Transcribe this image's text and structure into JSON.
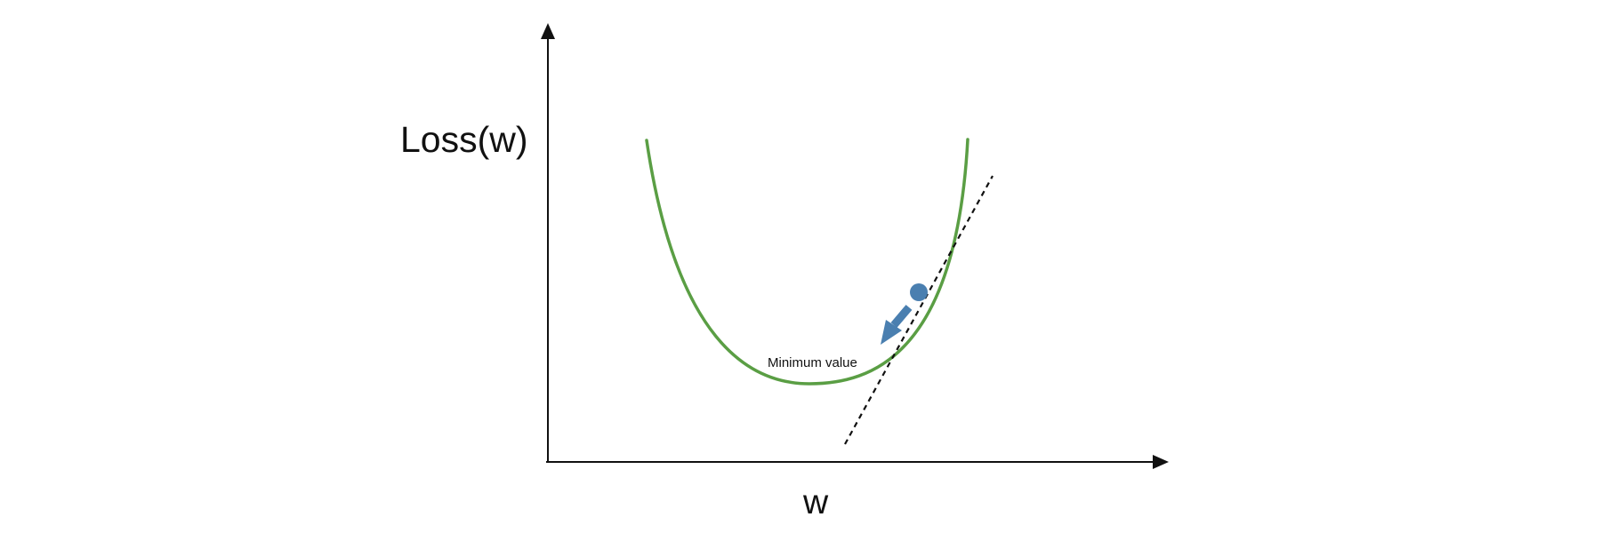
{
  "labels": {
    "y_axis": "Loss(w)",
    "x_axis": "w",
    "annotation": "Minimum value"
  },
  "colors": {
    "curve": "#5a9e44",
    "ball": "#4a7fb0",
    "arrow": "#4a7fb0",
    "tangent": "#111111",
    "axes": "#111111"
  },
  "icons": {
    "ball": "circle",
    "arrow": "down-left-arrow"
  }
}
